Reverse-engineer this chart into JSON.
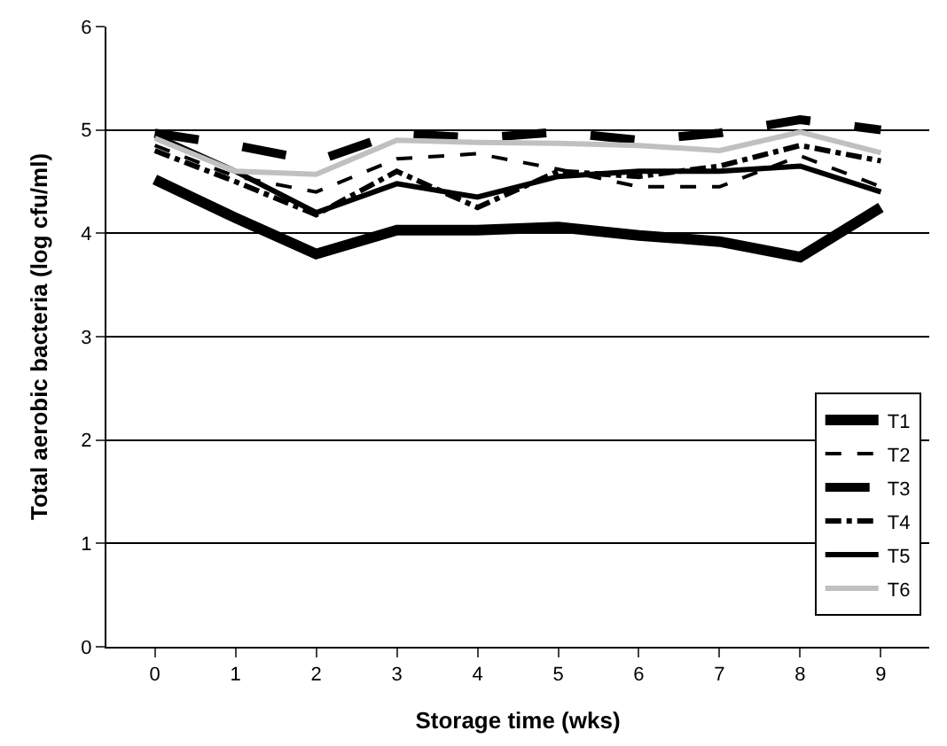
{
  "chart_data": {
    "type": "line",
    "xlabel": "Storage time (wks)",
    "ylabel": "Total aerobic bacteria (log cfu/ml)",
    "categories": [
      "0",
      "1",
      "2",
      "3",
      "4",
      "5",
      "6",
      "7",
      "8",
      "9"
    ],
    "series": [
      {
        "name": "T1",
        "color": "#000000",
        "line_style": "solid",
        "values": [
          4.52,
          4.15,
          3.8,
          4.03,
          4.03,
          4.06,
          3.98,
          3.92,
          3.77,
          4.25
        ]
      },
      {
        "name": "T2",
        "color": "#000000",
        "line_style": "dashed",
        "values": [
          4.85,
          4.55,
          4.4,
          4.72,
          4.77,
          4.62,
          4.45,
          4.45,
          4.75,
          4.45
        ]
      },
      {
        "name": "T3",
        "color": "#000000",
        "line_style": "dashed",
        "values": [
          4.97,
          4.85,
          4.7,
          4.97,
          4.92,
          4.98,
          4.9,
          4.97,
          5.1,
          5.0
        ]
      },
      {
        "name": "T4",
        "color": "#000000",
        "line_style": "dashed",
        "values": [
          4.8,
          4.5,
          4.18,
          4.6,
          4.25,
          4.6,
          4.55,
          4.65,
          4.85,
          4.7
        ]
      },
      {
        "name": "T5",
        "color": "#000000",
        "line_style": "solid",
        "values": [
          4.95,
          4.6,
          4.2,
          4.48,
          4.35,
          4.55,
          4.6,
          4.6,
          4.65,
          4.4
        ]
      },
      {
        "name": "T6",
        "color": "#c0c0c0",
        "line_style": "solid",
        "values": [
          4.92,
          4.6,
          4.57,
          4.9,
          4.88,
          4.87,
          4.85,
          4.8,
          4.98,
          4.78
        ]
      }
    ],
    "ylim": [
      0,
      6
    ],
    "yticks": [
      0,
      1,
      2,
      3,
      4,
      5,
      6
    ],
    "grid": "y",
    "legend": "bottom right",
    "marker": "none"
  }
}
